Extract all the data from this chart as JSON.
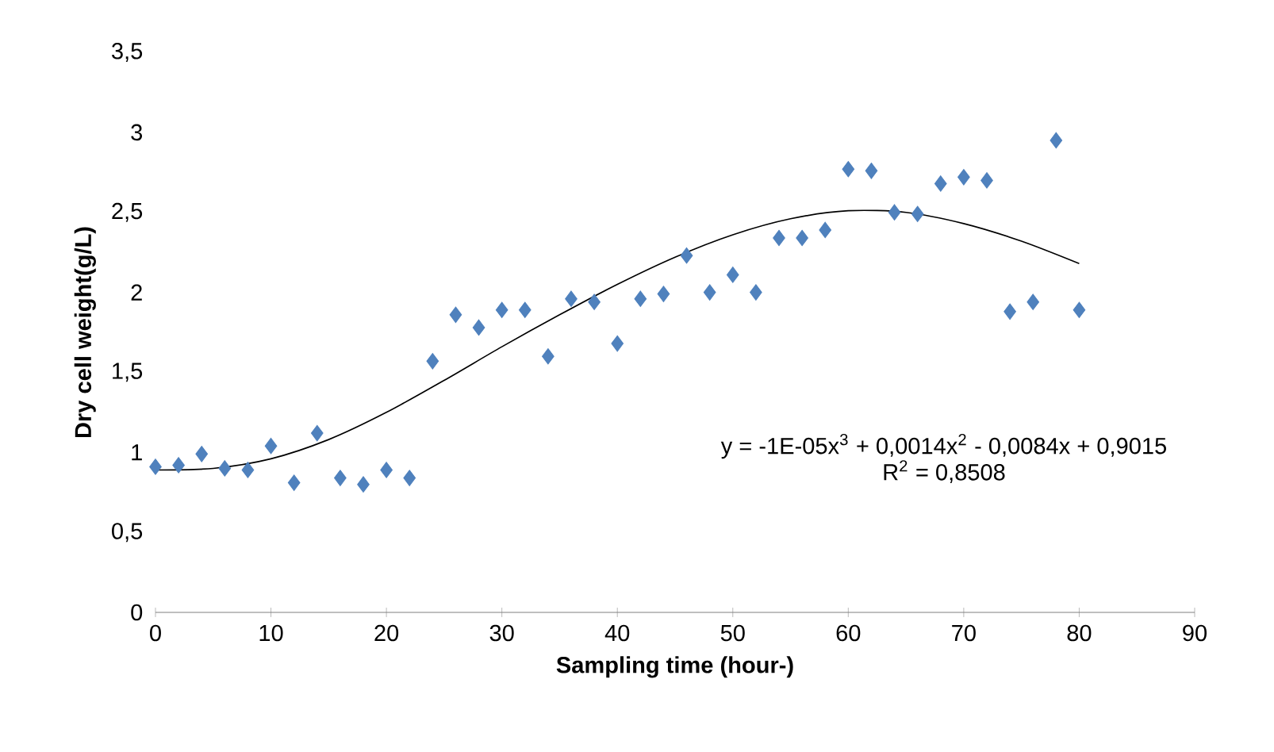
{
  "chart_data": {
    "type": "scatter",
    "xlabel": "Sampling time (hour-)",
    "ylabel": "Dry cell weight(g/L)",
    "xlim": [
      0,
      90
    ],
    "xticks": [
      0,
      10,
      20,
      30,
      40,
      50,
      60,
      70,
      80,
      90
    ],
    "ylim": [
      0,
      3.5
    ],
    "yticks": [
      0,
      {
        "value": 0.5,
        "label": "0,5"
      },
      1,
      {
        "value": 1.5,
        "label": "1,5"
      },
      2,
      {
        "value": 2.5,
        "label": "2,5"
      },
      3,
      {
        "value": 3.5,
        "label": "3,5"
      }
    ],
    "grid": false,
    "marker": "diamond",
    "series": [
      {
        "color": "#4f81bd",
        "x": [
          0,
          2,
          4,
          6,
          8,
          10,
          12,
          14,
          16,
          18,
          20,
          22,
          24,
          26,
          28,
          30,
          32,
          34,
          36,
          38,
          40,
          42,
          44,
          46,
          48,
          50,
          52,
          54,
          56,
          58,
          60,
          62,
          64,
          66,
          68,
          70,
          72,
          74,
          76,
          78,
          80
        ],
        "values": [
          0.91,
          0.92,
          0.99,
          0.9,
          0.89,
          1.04,
          0.81,
          1.12,
          0.84,
          0.8,
          0.89,
          0.84,
          1.57,
          1.86,
          1.78,
          1.89,
          1.89,
          1.6,
          1.96,
          1.94,
          1.68,
          1.96,
          1.99,
          2.23,
          2.0,
          2.11,
          2.0,
          2.34,
          2.34,
          2.39,
          2.77,
          2.76,
          2.5,
          2.49,
          2.68,
          2.72,
          2.7,
          1.88,
          1.94,
          2.95,
          1.89
        ]
      },
      {
        "type": "line",
        "color": "#000000",
        "marker": "none",
        "line_style": "solid",
        "x": [
          0,
          5,
          10,
          15,
          20,
          25,
          30,
          35,
          40,
          45,
          50,
          55,
          60,
          65,
          70,
          75,
          80
        ],
        "values": [
          0.89,
          0.9,
          0.96,
          1.08,
          1.25,
          1.45,
          1.66,
          1.86,
          2.05,
          2.22,
          2.36,
          2.46,
          2.51,
          2.5,
          2.43,
          2.32,
          2.18
        ]
      }
    ],
    "annotations": [
      "y = -1E-05x$^{3}$ + 0,0014x$^{2}$ - 0,0084x + 0,9015",
      "R$^{2}$ = 0,8508"
    ]
  }
}
